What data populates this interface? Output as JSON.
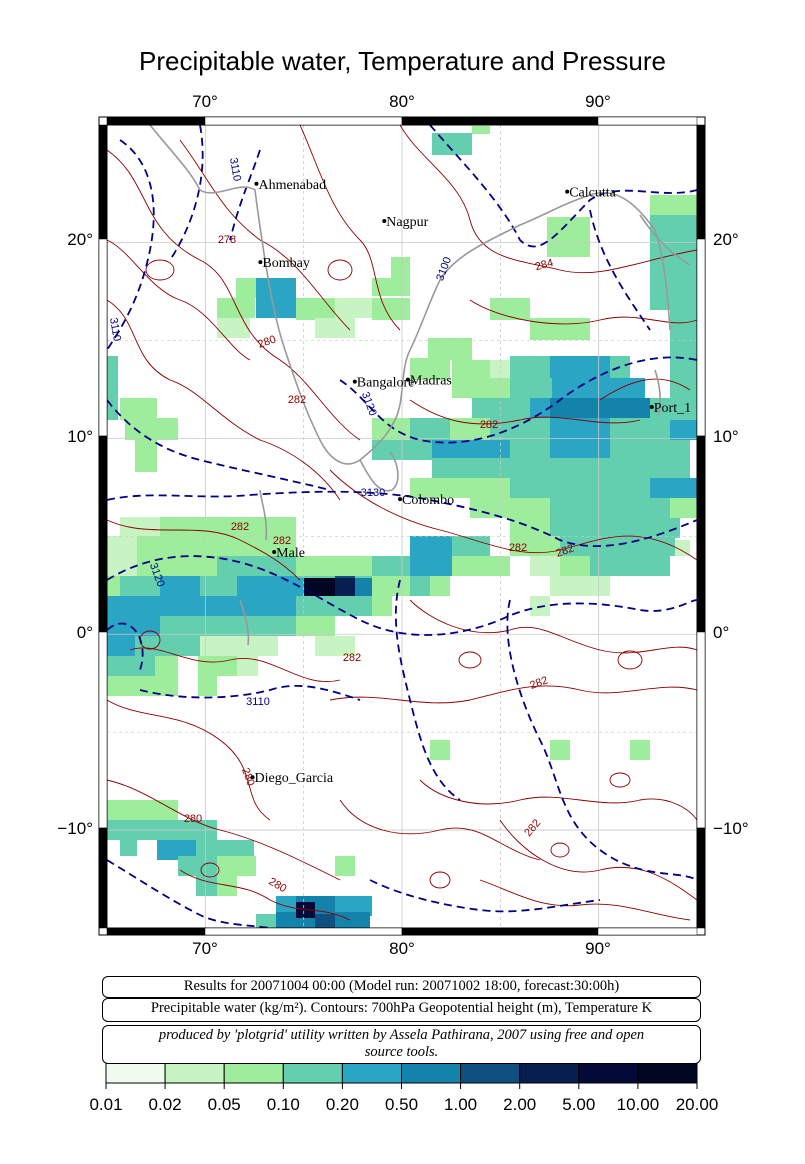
{
  "title": "Precipitable water, Temperature and Pressure",
  "map": {
    "lon_range": [
      65,
      95
    ],
    "lat_range": [
      -15,
      26
    ],
    "top_lon_labels": [
      "70°",
      "80°",
      "90°"
    ],
    "bottom_lon_labels": [
      "70°",
      "80°",
      "90°"
    ],
    "left_lat_labels": [
      "20°",
      "10°",
      "0°",
      "−10°"
    ],
    "right_lat_labels": [
      "20°",
      "10°",
      "0°",
      "−10°"
    ],
    "cities": [
      {
        "name": "Ahmenabad",
        "lon": 72.6,
        "lat": 23.0
      },
      {
        "name": "Nagpur",
        "lon": 79.1,
        "lat": 21.1
      },
      {
        "name": "Calcutta",
        "lon": 88.4,
        "lat": 22.6
      },
      {
        "name": "Bombay",
        "lon": 72.8,
        "lat": 19.0
      },
      {
        "name": "Bangalore",
        "lon": 77.6,
        "lat": 12.9
      },
      {
        "name": "Madras",
        "lon": 80.3,
        "lat": 13.0
      },
      {
        "name": "Port_1",
        "lon": 92.7,
        "lat": 11.6
      },
      {
        "name": "Colombo",
        "lon": 79.9,
        "lat": 6.9
      },
      {
        "name": "Male",
        "lon": 73.5,
        "lat": 4.2
      },
      {
        "name": "Diego_Garcia",
        "lon": 72.4,
        "lat": -7.3
      }
    ],
    "contour_labels": {
      "temperature": [
        "278",
        "280",
        "282",
        "282",
        "284",
        "282",
        "282",
        "282",
        "282",
        "282",
        "282",
        "280",
        "280",
        "280",
        "282"
      ],
      "geopotential": [
        "3110",
        "3100",
        "3110",
        "3120",
        "3130",
        "3120",
        "3110"
      ]
    },
    "colors": {
      "temperature_contour": "#8b0000",
      "height_contour": "#000080",
      "coastline": "#999999",
      "grid": "#c8c8c8"
    }
  },
  "info": {
    "line1": "Results for 20071004 00:00 (Model run: 20071002 18:00, forecast:30:00h)",
    "line2": "Precipitable water (kg/m²).  Contours: 700hPa Geopotential height (m), Temperature K",
    "line3a": "produced by 'plotgrid' utility written by Assela Pathirana, 2007 using free and open",
    "line3b": "source tools."
  },
  "colorbar": {
    "labels": [
      "0.01",
      "0.02",
      "0.05",
      "0.10",
      "0.20",
      "0.50",
      "1.00",
      "2.00",
      "5.00",
      "10.00",
      "20.00"
    ],
    "colors": [
      "#effcef",
      "#c8f4c4",
      "#9ded9c",
      "#64cfae",
      "#2aa6c4",
      "#1483ab",
      "#0f5081",
      "#061f4f",
      "#040a38",
      "#010723"
    ]
  }
}
